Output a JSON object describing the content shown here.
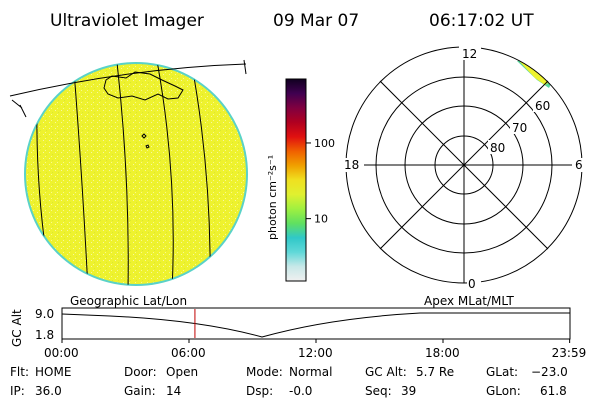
{
  "header": {
    "instrument": "Ultraviolet Imager",
    "date": "09 Mar 07",
    "time": "06:17:02 UT"
  },
  "colorbar": {
    "unit_label": "photon cm⁻²s⁻¹",
    "ticks": [
      {
        "label": "100",
        "value": 100
      },
      {
        "label": "10",
        "value": 10
      }
    ],
    "colors": [
      "#f0f0f0",
      "#c8e8e8",
      "#60d8d8",
      "#30c8c8",
      "#60e060",
      "#a0f040",
      "#e0f030",
      "#f0e020",
      "#f0a000",
      "#f06000",
      "#e01010",
      "#b00020",
      "#800040",
      "#400050",
      "#100020"
    ]
  },
  "polar_plot": {
    "mlt_labels": {
      "top": "12",
      "right": "6",
      "bottom": "0",
      "left": "18"
    },
    "mlat_labels": [
      "80",
      "70",
      "60"
    ]
  },
  "timeline": {
    "left_title": "Geographic Lat/Lon",
    "right_title": "Apex MLat/MLT",
    "y_axis_label": "GC Alt",
    "y_ticks": [
      "9.0",
      "1.8"
    ],
    "x_ticks": [
      "00:00",
      "06:00",
      "12:00",
      "18:00",
      "23:59"
    ],
    "current_time_hours": 6.28
  },
  "status": {
    "flt": {
      "label": "Flt:",
      "value": "HOME"
    },
    "ip": {
      "label": "IP:",
      "value": "36.0"
    },
    "door": {
      "label": "Door:",
      "value": "Open"
    },
    "gain": {
      "label": "Gain:",
      "value": "14"
    },
    "mode": {
      "label": "Mode:",
      "value": "Normal"
    },
    "dsp": {
      "label": "Dsp:",
      "value": "-0.0"
    },
    "gcalt": {
      "label": "GC Alt:",
      "value": "5.7 Re"
    },
    "seq": {
      "label": "Seq:",
      "value": "39"
    },
    "glat": {
      "label": "GLat:",
      "value": "−23.0"
    },
    "glon": {
      "label": "GLon:",
      "value": "61.8"
    }
  }
}
